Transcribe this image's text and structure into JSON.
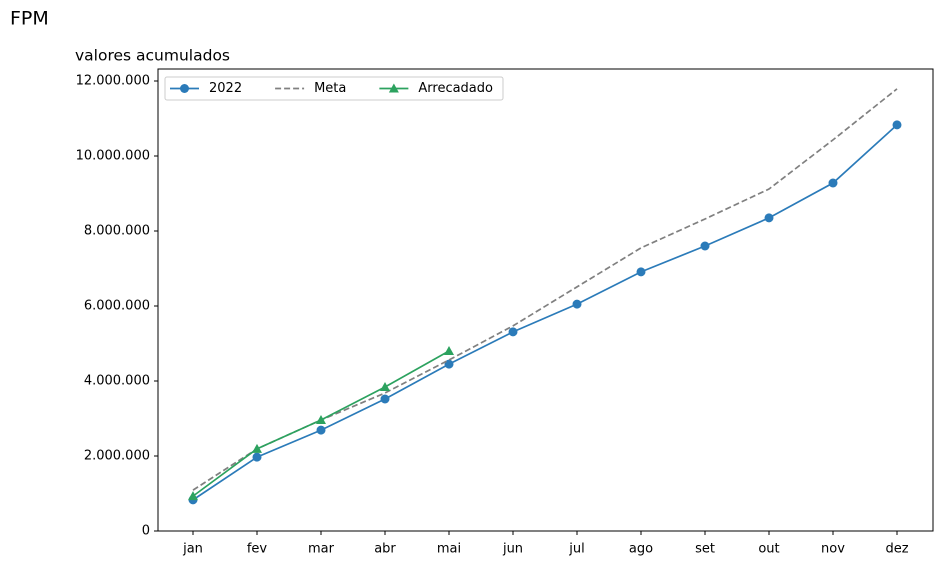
{
  "chart_data": {
    "type": "line",
    "title": "FPM",
    "subtitle": "valores acumulados",
    "categories": [
      "jan",
      "fev",
      "mar",
      "abr",
      "mai",
      "jun",
      "jul",
      "ago",
      "set",
      "out",
      "nov",
      "dez"
    ],
    "series": [
      {
        "name": "2022",
        "color": "#2b7bb9",
        "linestyle": "solid",
        "marker": "circle",
        "values": [
          830000,
          1970000,
          2690000,
          3520000,
          4450000,
          5310000,
          6050000,
          6910000,
          7600000,
          8350000,
          9280000,
          10830000
        ]
      },
      {
        "name": "Meta",
        "color": "#808080",
        "linestyle": "dashed",
        "marker": "none",
        "values": [
          1090000,
          2190000,
          2960000,
          3680000,
          4560000,
          5470000,
          6510000,
          7550000,
          8320000,
          9120000,
          10430000,
          11790000
        ]
      },
      {
        "name": "Arrecadado",
        "color": "#2ca25f",
        "linestyle": "solid",
        "marker": "triangle",
        "values": [
          930000,
          2190000,
          2960000,
          3840000,
          4800000,
          null,
          null,
          null,
          null,
          null,
          null,
          null
        ]
      }
    ],
    "ylim": [
      0,
      12320000
    ],
    "yticks": [
      0,
      {
        "value": 2000000,
        "label": "2.000.000"
      },
      {
        "value": 4000000,
        "label": "4.000.000"
      },
      {
        "value": 6000000,
        "label": "6.000.000"
      },
      {
        "value": 8000000,
        "label": "8.000.000"
      },
      {
        "value": 10000000,
        "label": "10.000.000"
      },
      {
        "value": 12000000,
        "label": "12.000.000"
      }
    ],
    "legend": "upper left",
    "grid": false
  }
}
